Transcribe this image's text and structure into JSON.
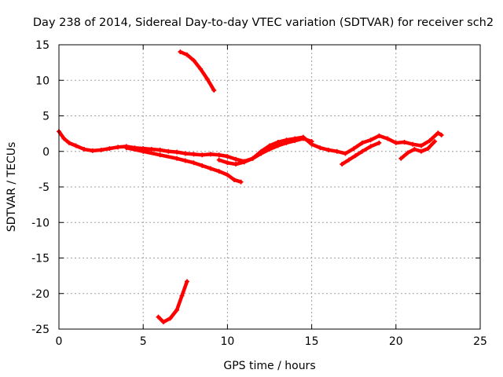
{
  "chart_data": {
    "type": "scatter",
    "title": "Day 238 of 2014, Sidereal Day-to-day VTEC variation (SDTVAR) for receiver sch2",
    "xlabel": "GPS time / hours",
    "ylabel": "SDTVAR / TECUs",
    "xlim": [
      0,
      25
    ],
    "ylim": [
      -25,
      15
    ],
    "x_ticks": [
      0,
      5,
      10,
      15,
      20,
      25
    ],
    "y_ticks": [
      -25,
      -20,
      -15,
      -10,
      -5,
      0,
      5,
      10,
      15
    ],
    "grid": true,
    "marker_color": "#ff0000",
    "series": [
      {
        "name": "main-upper",
        "x": [
          0.0,
          0.3,
          0.6,
          1.0,
          1.5,
          2.0,
          2.5,
          3.0,
          3.5,
          4.0,
          4.5,
          5.0,
          5.5,
          6.0,
          6.5,
          7.0,
          7.5,
          8.0,
          8.5,
          9.0,
          9.5,
          10.0,
          10.5,
          11.0,
          11.5,
          12.0,
          12.5,
          13.0,
          13.5,
          14.0,
          14.5,
          15.0,
          15.5,
          16.0,
          16.5,
          17.0,
          17.5,
          18.0,
          18.5,
          19.0,
          19.5,
          20.0,
          20.5,
          21.0,
          21.5,
          22.0,
          22.5,
          22.7
        ],
        "y": [
          2.8,
          1.8,
          1.2,
          0.8,
          0.3,
          0.1,
          0.2,
          0.4,
          0.6,
          0.7,
          0.5,
          0.4,
          0.3,
          0.2,
          0.0,
          -0.1,
          -0.3,
          -0.4,
          -0.5,
          -0.4,
          -0.5,
          -0.7,
          -1.1,
          -1.4,
          -1.0,
          0.0,
          0.8,
          1.3,
          1.6,
          1.8,
          2.0,
          1.0,
          0.5,
          0.2,
          0.0,
          -0.3,
          0.4,
          1.2,
          1.6,
          2.2,
          1.8,
          1.2,
          1.3,
          1.0,
          0.8,
          1.5,
          2.6,
          2.3
        ]
      },
      {
        "name": "main-lower",
        "x": [
          4.0,
          5.0,
          6.0,
          7.0,
          7.5,
          8.0,
          8.5,
          9.0,
          9.5,
          10.0,
          10.4,
          10.8
        ],
        "y": [
          0.5,
          0.0,
          -0.5,
          -1.0,
          -1.3,
          -1.6,
          -2.0,
          -2.4,
          -2.8,
          -3.3,
          -4.0,
          -4.3
        ]
      },
      {
        "name": "mid-loop",
        "x": [
          9.5,
          10.0,
          10.5,
          11.0,
          11.5,
          12.0,
          12.5,
          13.0,
          13.5,
          14.0,
          14.5,
          15.0
        ],
        "y": [
          -1.2,
          -1.6,
          -1.8,
          -1.5,
          -1.0,
          -0.3,
          0.3,
          0.8,
          1.2,
          1.5,
          1.8,
          1.4
        ]
      },
      {
        "name": "late-lower",
        "x": [
          16.8,
          17.2,
          17.6,
          18.0,
          18.5,
          19.0
        ],
        "y": [
          -1.8,
          -1.2,
          -0.6,
          0.0,
          0.7,
          1.2
        ]
      },
      {
        "name": "late-dip",
        "x": [
          20.3,
          20.7,
          21.1,
          21.5,
          21.9,
          22.3
        ],
        "y": [
          -1.0,
          -0.2,
          0.3,
          0.0,
          0.4,
          1.4
        ]
      },
      {
        "name": "high-arc",
        "x": [
          7.2,
          7.6,
          8.0,
          8.4,
          8.8,
          9.2
        ],
        "y": [
          14.0,
          13.6,
          12.8,
          11.6,
          10.2,
          8.6
        ]
      },
      {
        "name": "low-arc",
        "x": [
          5.9,
          6.2,
          6.6,
          7.0,
          7.3,
          7.6
        ],
        "y": [
          -23.3,
          -24.0,
          -23.5,
          -22.3,
          -20.3,
          -18.3
        ]
      }
    ]
  }
}
